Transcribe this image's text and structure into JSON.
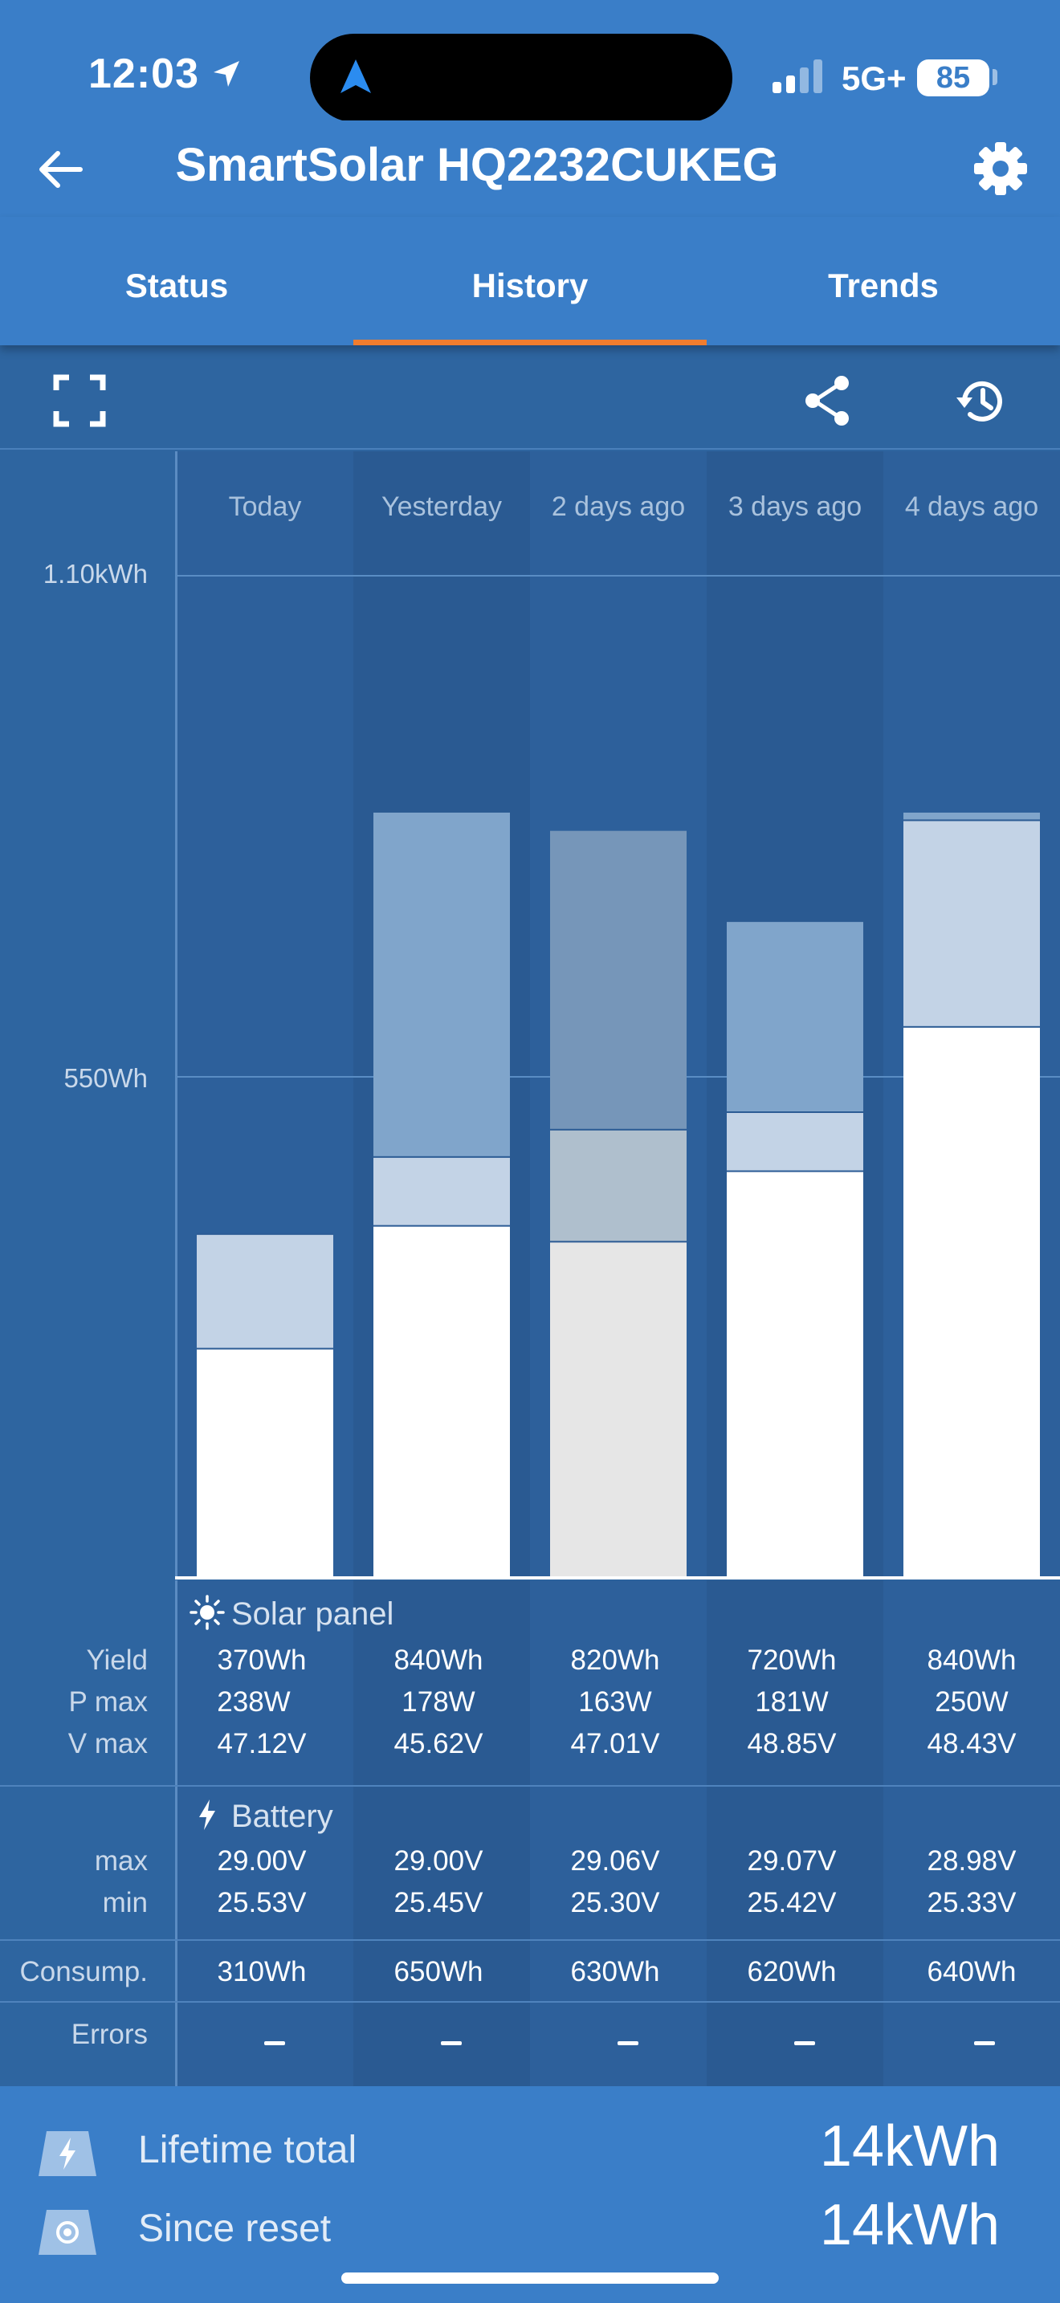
{
  "status_bar": {
    "time": "12:03",
    "network": "5G+",
    "battery": "85"
  },
  "app_bar": {
    "title": "SmartSolar HQ2232CUKEG"
  },
  "tabs": [
    {
      "label": "Status"
    },
    {
      "label": "History"
    },
    {
      "label": "Trends"
    }
  ],
  "active_tab": "History",
  "chart_data": {
    "type": "bar",
    "categories": [
      "Today",
      "Yesterday",
      "2 days ago",
      "3 days ago",
      "4 days ago"
    ],
    "y_tick_labels": [
      "1.10kWh",
      "550Wh"
    ],
    "y_ticks_wh": [
      1100,
      550
    ],
    "yield_wh": [
      370,
      840,
      820,
      720,
      840
    ],
    "consumption_wh": [
      310,
      650,
      630,
      620,
      640
    ],
    "ylim": [
      0,
      1240
    ],
    "colors": {
      "bulk": "#ffffff",
      "absorption": "#c3d3e6",
      "float": "#80a5cb",
      "bulk_dim": "#e6e6e6",
      "absorption_dim": "#afbfcd",
      "float_dim": "#7696b9"
    }
  },
  "solar_panel": {
    "title": "Solar panel",
    "row_labels": {
      "yield": "Yield",
      "pmax": "P max",
      "vmax": "V max"
    },
    "yield": [
      "370Wh",
      "840Wh",
      "820Wh",
      "720Wh",
      "840Wh"
    ],
    "pmax": [
      "238W",
      "178W",
      "163W",
      "181W",
      "250W"
    ],
    "vmax": [
      "47.12V",
      "45.62V",
      "47.01V",
      "48.85V",
      "48.43V"
    ]
  },
  "battery": {
    "title": "Battery",
    "row_labels": {
      "max": "max",
      "min": "min"
    },
    "max": [
      "29.00V",
      "29.00V",
      "29.06V",
      "29.07V",
      "28.98V"
    ],
    "min": [
      "25.53V",
      "25.45V",
      "25.30V",
      "25.42V",
      "25.33V"
    ]
  },
  "consumption": {
    "label": "Consump.",
    "values": [
      "310Wh",
      "650Wh",
      "630Wh",
      "620Wh",
      "640Wh"
    ]
  },
  "errors": {
    "label": "Errors",
    "values": [
      "–",
      "–",
      "–",
      "–",
      "–"
    ]
  },
  "footer": {
    "lifetime_label": "Lifetime total",
    "lifetime_value": "14kWh",
    "since_reset_label": "Since reset",
    "since_reset_value": "14kWh"
  }
}
